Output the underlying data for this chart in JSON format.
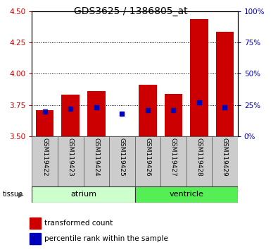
{
  "title": "GDS3625 / 1386805_at",
  "samples": [
    "GSM119422",
    "GSM119423",
    "GSM119424",
    "GSM119425",
    "GSM119426",
    "GSM119427",
    "GSM119428",
    "GSM119429"
  ],
  "red_bar_tops": [
    3.71,
    3.835,
    3.86,
    3.502,
    3.91,
    3.84,
    4.435,
    4.335
  ],
  "blue_percentiles": [
    20,
    22,
    23,
    18,
    21,
    21,
    27,
    23
  ],
  "bar_bottom": 3.5,
  "ylim_left": [
    3.5,
    4.5
  ],
  "ylim_right": [
    0,
    100
  ],
  "yticks_left": [
    3.5,
    3.75,
    4.0,
    4.25,
    4.5
  ],
  "yticks_right": [
    0,
    25,
    50,
    75,
    100
  ],
  "yticklabels_right": [
    "0%",
    "25%",
    "50%",
    "75%",
    "100%"
  ],
  "grid_values": [
    3.75,
    4.0,
    4.25
  ],
  "red_color": "#cc0000",
  "blue_color": "#0000bb",
  "bar_width": 0.7,
  "atrium_color": "#ccffcc",
  "ventricle_color": "#55ee55",
  "legend_red": "transformed count",
  "legend_blue": "percentile rank within the sample",
  "blue_square_size": 22,
  "title_fontsize": 10,
  "tick_fontsize": 7.5,
  "label_fontsize": 6.5,
  "tissue_fontsize": 8
}
